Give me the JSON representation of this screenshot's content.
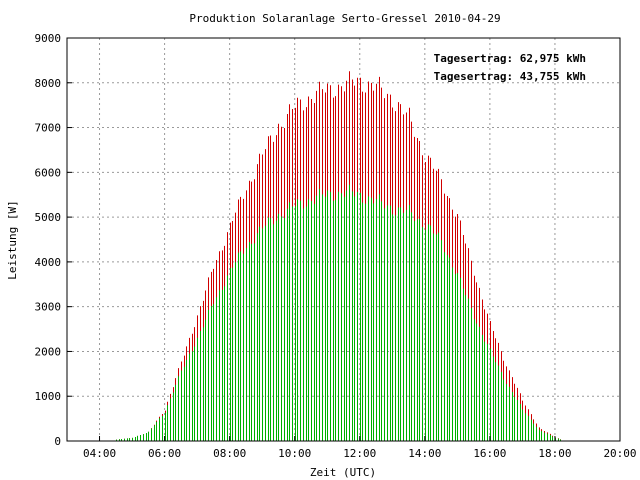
{
  "chart_data": {
    "type": "bar",
    "title": "Produktion Solaranlage Serto-Gressel 2010-04-29",
    "xlabel": "Zeit (UTC)",
    "ylabel": "Leistung [W]",
    "xlim": [
      3,
      20
    ],
    "ylim": [
      0,
      9000
    ],
    "x_ticks": [
      4,
      6,
      8,
      10,
      12,
      14,
      16,
      18,
      20
    ],
    "x_tick_labels": [
      "04:00",
      "06:00",
      "08:00",
      "10:00",
      "12:00",
      "14:00",
      "16:00",
      "18:00",
      "20:00"
    ],
    "y_ticks": [
      0,
      1000,
      2000,
      3000,
      4000,
      5000,
      6000,
      7000,
      8000,
      9000
    ],
    "y_tick_labels": [
      "0",
      "1000",
      "2000",
      "3000",
      "4000",
      "5000",
      "6000",
      "7000",
      "8000",
      "9000"
    ],
    "grid": true,
    "legend_position": "top-right",
    "series": [
      {
        "name": "Tagesertrag: 62,975 kWh",
        "color": "#d00000",
        "points": [
          [
            4.5,
            30
          ],
          [
            5,
            70
          ],
          [
            5.5,
            200
          ],
          [
            6,
            700
          ],
          [
            6.5,
            1750
          ],
          [
            7,
            2800
          ],
          [
            7.5,
            3900
          ],
          [
            8,
            4800
          ],
          [
            8.5,
            5650
          ],
          [
            9,
            6400
          ],
          [
            9.5,
            7050
          ],
          [
            10,
            7450
          ],
          [
            10.5,
            7700
          ],
          [
            11,
            7850
          ],
          [
            11.5,
            7950
          ],
          [
            12,
            8050
          ],
          [
            12.5,
            7900
          ],
          [
            13,
            7650
          ],
          [
            13.5,
            7200
          ],
          [
            14,
            6400
          ],
          [
            14.5,
            5800
          ],
          [
            15,
            5000
          ],
          [
            15.5,
            3800
          ],
          [
            16,
            2600
          ],
          [
            16.5,
            1700
          ],
          [
            17,
            900
          ],
          [
            17.5,
            300
          ],
          [
            18,
            80
          ],
          [
            18.25,
            20
          ]
        ]
      },
      {
        "name": "Tagesertrag: 43,755 kWh",
        "color": "#00b000",
        "points": [
          [
            4.5,
            30
          ],
          [
            5,
            70
          ],
          [
            5.5,
            200
          ],
          [
            6,
            650
          ],
          [
            6.5,
            1550
          ],
          [
            7,
            2300
          ],
          [
            7.5,
            3100
          ],
          [
            8,
            3800
          ],
          [
            8.5,
            4350
          ],
          [
            9,
            4750
          ],
          [
            9.5,
            5050
          ],
          [
            10,
            5250
          ],
          [
            10.5,
            5400
          ],
          [
            11,
            5500
          ],
          [
            11.5,
            5550
          ],
          [
            12,
            5500
          ],
          [
            12.5,
            5350
          ],
          [
            13,
            5200
          ],
          [
            13.5,
            5100
          ],
          [
            14,
            4850
          ],
          [
            14.5,
            4450
          ],
          [
            15,
            3700
          ],
          [
            15.5,
            2800
          ],
          [
            16,
            2000
          ],
          [
            16.5,
            1300
          ],
          [
            17,
            700
          ],
          [
            17.5,
            250
          ],
          [
            18,
            70
          ],
          [
            18.25,
            15
          ]
        ]
      }
    ]
  }
}
